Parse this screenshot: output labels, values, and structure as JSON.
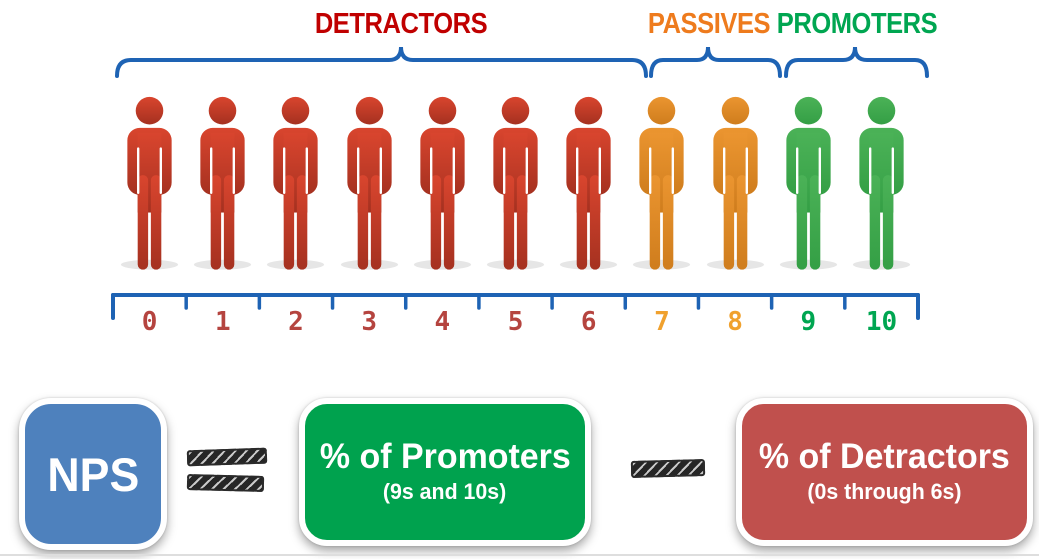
{
  "groups": [
    {
      "id": "detractors",
      "label": "DETRACTORS",
      "range_start": 0,
      "range_end": 6,
      "label_color": "#c00000",
      "person_color_top": "#d9452e",
      "person_color_bottom": "#a53120",
      "number_color": "#b5443f"
    },
    {
      "id": "passives",
      "label": "PASSIVES",
      "range_start": 7,
      "range_end": 8,
      "label_color": "#ee7b1d",
      "person_color_top": "#eb9530",
      "person_color_bottom": "#cf7d1d",
      "number_color": "#f0a12e"
    },
    {
      "id": "promoters",
      "label": "PROMOTERS",
      "range_start": 9,
      "range_end": 10,
      "label_color": "#00a651",
      "person_color_top": "#4bb257",
      "person_color_bottom": "#349f45",
      "number_color": "#00a651"
    }
  ],
  "scale": {
    "min": 0,
    "max": 10,
    "axis_color": "#1e63b4",
    "brace_color": "#1e63b4"
  },
  "formula": {
    "nps_label": "NPS",
    "nps_bg": "#4e81bd",
    "equals_symbol": "=",
    "minus_symbol": "−",
    "promoters_line1": "% of Promoters",
    "promoters_line2": "(9s and 10s)",
    "promoters_bg": "#00a24e",
    "detractors_line1": "% of Detractors",
    "detractors_line2": "(0s through 6s)",
    "detractors_bg": "#c0504d",
    "text_color": "#ffffff"
  }
}
